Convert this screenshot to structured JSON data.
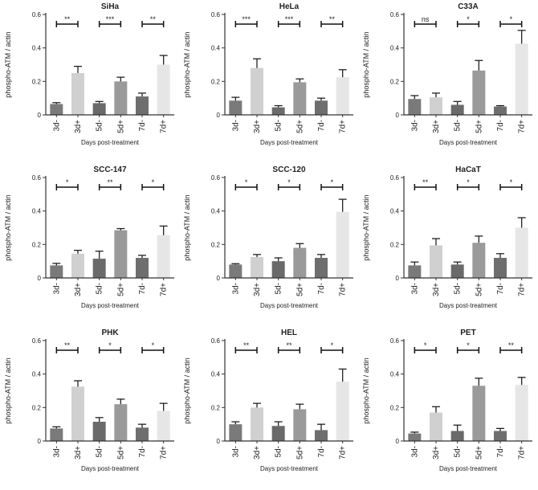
{
  "figure": {
    "xlabel": "Days post-treatment",
    "ylabel": "phospho-ATM / actin",
    "categories": [
      "3d-",
      "3d+",
      "5d-",
      "5d+",
      "7d-",
      "7d+"
    ],
    "colors": {
      "3d-": "#7a7a7a",
      "3d+": "#d0d0d0",
      "5d-": "#6a6a6a",
      "5d+": "#9a9a9a",
      "7d-": "#6e6e6e",
      "7d+": "#e6e6e6",
      "axis": "#333333"
    }
  },
  "chart_data": [
    {
      "type": "bar",
      "title": "SiHa",
      "categories": [
        "3d-",
        "3d+",
        "5d-",
        "5d+",
        "7d-",
        "7d+"
      ],
      "values": [
        0.065,
        0.25,
        0.07,
        0.2,
        0.11,
        0.3
      ],
      "errors": [
        0.008,
        0.04,
        0.01,
        0.025,
        0.02,
        0.055
      ],
      "significance": [
        "**",
        "***",
        "**"
      ],
      "ylim": [
        0,
        0.6
      ],
      "yticks": [
        0,
        0.2,
        0.4,
        0.6
      ],
      "ytick_labels": [
        "0",
        "0.2",
        "0.4",
        "0.6"
      ],
      "xlabel": "Days post-treatment",
      "ylabel": "phospho-ATM / actin"
    },
    {
      "type": "bar",
      "title": "HeLa",
      "categories": [
        "3d-",
        "3d+",
        "5d-",
        "5d+",
        "7d-",
        "7d+"
      ],
      "values": [
        0.085,
        0.28,
        0.045,
        0.195,
        0.085,
        0.225
      ],
      "errors": [
        0.02,
        0.055,
        0.01,
        0.02,
        0.015,
        0.045
      ],
      "significance": [
        "***",
        "***",
        "**"
      ],
      "ylim": [
        0,
        0.6
      ],
      "yticks": [
        0,
        0.2,
        0.4,
        0.6
      ],
      "ytick_labels": [
        "0",
        "0.2",
        "0.4",
        "0.6"
      ],
      "xlabel": "Days post-treatment",
      "ylabel": "phospho-ATM / actin"
    },
    {
      "type": "bar",
      "title": "C33A",
      "categories": [
        "3d-",
        "3d+",
        "5d-",
        "5d+",
        "7d-",
        "7d+"
      ],
      "values": [
        0.095,
        0.105,
        0.06,
        0.265,
        0.05,
        0.425
      ],
      "errors": [
        0.02,
        0.025,
        0.02,
        0.06,
        0.005,
        0.08
      ],
      "significance": [
        "ns",
        "*",
        "*"
      ],
      "ylim": [
        0,
        0.6
      ],
      "yticks": [
        0,
        0.2,
        0.4,
        0.6
      ],
      "ytick_labels": [
        "0",
        "0.2",
        "0.4",
        "0.6"
      ],
      "xlabel": "Days post-treatment",
      "ylabel": "phospho-ATM / actin"
    },
    {
      "type": "bar",
      "title": "SCC-147",
      "categories": [
        "3d-",
        "3d+",
        "5d-",
        "5d+",
        "7d-",
        "7d+"
      ],
      "values": [
        0.075,
        0.145,
        0.115,
        0.285,
        0.12,
        0.255
      ],
      "errors": [
        0.012,
        0.02,
        0.045,
        0.01,
        0.015,
        0.055
      ],
      "significance": [
        "*",
        "**",
        "*"
      ],
      "ylim": [
        0,
        0.6
      ],
      "yticks": [
        0,
        0.2,
        0.4,
        0.6
      ],
      "ytick_labels": [
        "0",
        "0.2",
        "0.4",
        "0.6"
      ],
      "xlabel": "Days post-treatment",
      "ylabel": "phospho-ATM / actin"
    },
    {
      "type": "bar",
      "title": "SCC-120",
      "categories": [
        "3d-",
        "3d+",
        "5d-",
        "5d+",
        "7d-",
        "7d+"
      ],
      "values": [
        0.08,
        0.125,
        0.1,
        0.18,
        0.12,
        0.395
      ],
      "errors": [
        0.005,
        0.015,
        0.02,
        0.025,
        0.02,
        0.075
      ],
      "significance": [
        "*",
        "*",
        "*"
      ],
      "ylim": [
        0,
        0.6
      ],
      "yticks": [
        0,
        0.2,
        0.4,
        0.6
      ],
      "ytick_labels": [
        "0",
        "0.2",
        "0.4",
        "0.6"
      ],
      "xlabel": "Days post-treatment",
      "ylabel": "phospho-ATM / actin"
    },
    {
      "type": "bar",
      "title": "HaCaT",
      "categories": [
        "3d-",
        "3d+",
        "5d-",
        "5d+",
        "7d-",
        "7d+"
      ],
      "values": [
        0.075,
        0.195,
        0.08,
        0.21,
        0.12,
        0.3
      ],
      "errors": [
        0.02,
        0.04,
        0.015,
        0.04,
        0.025,
        0.06
      ],
      "significance": [
        "**",
        "*",
        "*"
      ],
      "ylim": [
        0,
        0.6
      ],
      "yticks": [
        0,
        0.2,
        0.4,
        0.6
      ],
      "ytick_labels": [
        "0",
        "0.2",
        "0.4",
        "0.6"
      ],
      "xlabel": "Days post-treatment",
      "ylabel": "phospho-ATM / actin"
    },
    {
      "type": "bar",
      "title": "PHK",
      "categories": [
        "3d-",
        "3d+",
        "5d-",
        "5d+",
        "7d-",
        "7d+"
      ],
      "values": [
        0.075,
        0.325,
        0.115,
        0.22,
        0.08,
        0.18
      ],
      "errors": [
        0.01,
        0.035,
        0.025,
        0.03,
        0.02,
        0.045
      ],
      "significance": [
        "**",
        "*",
        "*"
      ],
      "ylim": [
        0,
        0.6
      ],
      "yticks": [
        0,
        0.2,
        0.4,
        0.6
      ],
      "ytick_labels": [
        "0",
        "0.2",
        "0.4",
        "0.6"
      ],
      "xlabel": "Days post-treatment",
      "ylabel": "phospho-ATM / actin"
    },
    {
      "type": "bar",
      "title": "HEL",
      "categories": [
        "3d-",
        "3d+",
        "5d-",
        "5d+",
        "7d-",
        "7d+"
      ],
      "values": [
        0.1,
        0.2,
        0.09,
        0.19,
        0.065,
        0.355
      ],
      "errors": [
        0.015,
        0.025,
        0.025,
        0.03,
        0.035,
        0.075
      ],
      "significance": [
        "**",
        "**",
        "*"
      ],
      "ylim": [
        0,
        0.6
      ],
      "yticks": [
        0,
        0.2,
        0.4,
        0.6
      ],
      "ytick_labels": [
        "0",
        "0.2",
        "0.4",
        "0.6"
      ],
      "xlabel": "Days post-treatment",
      "ylabel": "phospho-ATM / actin"
    },
    {
      "type": "bar",
      "title": "PET",
      "categories": [
        "3d-",
        "3d+",
        "5d-",
        "5d+",
        "7d-",
        "7d+"
      ],
      "values": [
        0.045,
        0.17,
        0.06,
        0.33,
        0.06,
        0.335
      ],
      "errors": [
        0.008,
        0.035,
        0.035,
        0.045,
        0.015,
        0.045
      ],
      "significance": [
        "*",
        "*",
        "**"
      ],
      "ylim": [
        0,
        0.6
      ],
      "yticks": [
        0,
        0.2,
        0.4,
        0.6
      ],
      "ytick_labels": [
        "0",
        "0.2",
        "0.4",
        "0.6"
      ],
      "xlabel": "Days post-treatment",
      "ylabel": "phospho-ATM / actin"
    }
  ]
}
